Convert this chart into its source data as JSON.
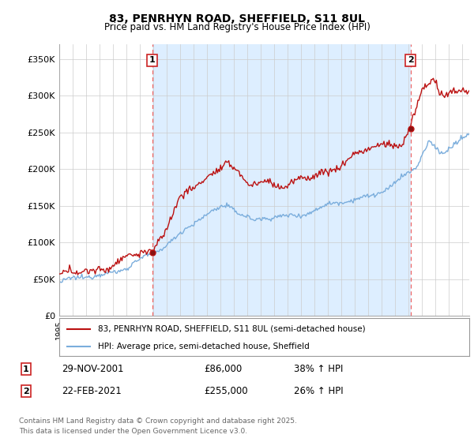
{
  "title": "83, PENRHYN ROAD, SHEFFIELD, S11 8UL",
  "subtitle": "Price paid vs. HM Land Registry's House Price Index (HPI)",
  "xlim_start": 1995.0,
  "xlim_end": 2025.5,
  "ylim": [
    0,
    370000
  ],
  "yticks": [
    0,
    50000,
    100000,
    150000,
    200000,
    250000,
    300000,
    350000
  ],
  "ytick_labels": [
    "£0",
    "£50K",
    "£100K",
    "£150K",
    "£200K",
    "£250K",
    "£300K",
    "£350K"
  ],
  "hpi_color": "#7aaddc",
  "price_color": "#bb1111",
  "vline_color": "#ee6666",
  "fill_color": "#ddeeff",
  "marker1_date": 2001.91,
  "marker1_price": 86000,
  "marker2_date": 2021.13,
  "marker2_price": 255000,
  "legend_property": "83, PENRHYN ROAD, SHEFFIELD, S11 8UL (semi-detached house)",
  "legend_hpi": "HPI: Average price, semi-detached house, Sheffield",
  "table_row1": [
    "1",
    "29-NOV-2001",
    "£86,000",
    "38% ↑ HPI"
  ],
  "table_row2": [
    "2",
    "22-FEB-2021",
    "£255,000",
    "26% ↑ HPI"
  ],
  "footnote": "Contains HM Land Registry data © Crown copyright and database right 2025.\nThis data is licensed under the Open Government Licence v3.0.",
  "background_color": "#ffffff",
  "grid_color": "#cccccc"
}
